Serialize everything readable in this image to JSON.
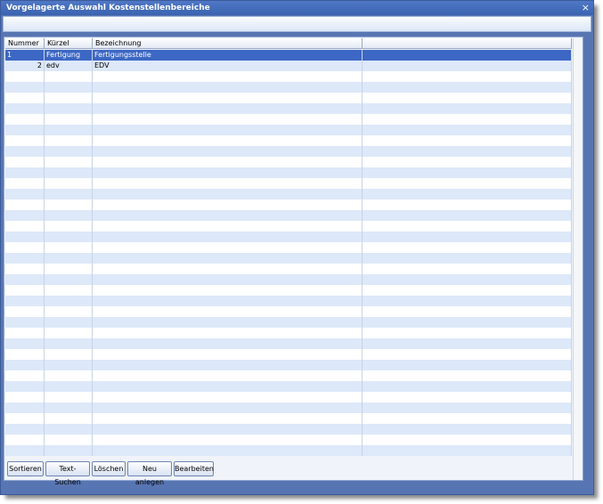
{
  "window": {
    "title": "Vorgelagerte Auswahl Kostenstellenbereiche",
    "close": "×"
  },
  "table": {
    "columns": [
      "Nummer",
      "Kürzel",
      "Bezeichnung"
    ],
    "rows": [
      [
        1,
        "Fertigung",
        "Fertigungsstelle"
      ],
      [
        2,
        "edv",
        "EDV"
      ]
    ]
  },
  "buttons": [
    "Sortieren",
    "Text-Suchen",
    "Löschen",
    "Neu anlegen",
    "Bearbeiten"
  ]
}
